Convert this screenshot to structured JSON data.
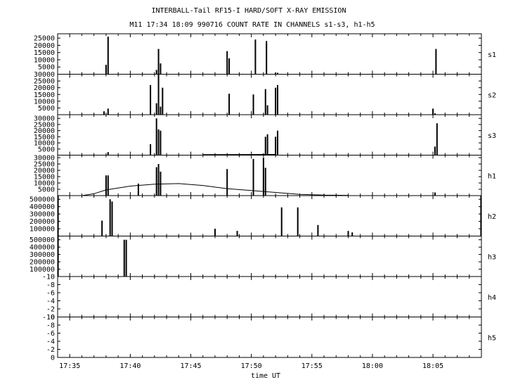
{
  "title_line1": "INTERBALL-Tail RF15-I HARD/SOFT X-RAY EMISSION",
  "title_line2": "M11  17:34 18:09 990716  COUNT RATE IN CHANNELS s1-s3, h1-h5",
  "xlabel": "time UT",
  "x_ticks": [
    "17:35",
    "17:40",
    "17:45",
    "17:50",
    "17:55",
    "18:00",
    "18:05"
  ],
  "chart_data": {
    "type": "bar",
    "title": "INTERBALL-Tail RF15-I HARD/SOFT X-RAY EMISSION",
    "subtitle": "M11  17:34 18:09 990716  COUNT RATE IN CHANNELS s1-s3, h1-h5",
    "xlabel": "time UT",
    "xlim": [
      "17:34",
      "18:09"
    ],
    "grid": false,
    "series": [
      {
        "name": "s1",
        "ylim": [
          0,
          28000
        ],
        "y_ticks": [
          5000,
          10000,
          15000,
          20000,
          25000
        ],
        "x": [
          "17:38:00",
          "17:38:10",
          "17:42:10",
          "17:42:20",
          "17:42:30",
          "17:48:00",
          "17:48:10",
          "17:50:20",
          "17:51:15",
          "17:52:00",
          "17:52:10",
          "18:05:15"
        ],
        "values": [
          6500,
          26000,
          3000,
          17500,
          7500,
          16000,
          11000,
          24000,
          23000,
          1000,
          1000,
          17500
        ]
      },
      {
        "name": "s2",
        "ylim": [
          0,
          30000
        ],
        "y_ticks": [
          5000,
          10000,
          15000,
          20000,
          25000,
          30000
        ],
        "x": [
          "17:37:50",
          "17:38:10",
          "17:41:40",
          "17:42:10",
          "17:42:20",
          "17:42:30",
          "17:42:40",
          "17:48:10",
          "17:50:10",
          "17:51:10",
          "17:51:20",
          "17:52:00",
          "17:52:10",
          "18:05:00",
          "18:05:10"
        ],
        "values": [
          2500,
          4500,
          22000,
          8500,
          30000,
          6000,
          20000,
          15500,
          15000,
          19000,
          7000,
          20000,
          22000,
          4500,
          1000
        ],
        "baseline": []
      },
      {
        "name": "s3",
        "ylim": [
          0,
          33000
        ],
        "y_ticks": [
          5000,
          10000,
          15000,
          20000,
          25000,
          30000
        ],
        "x": [
          "17:38:10",
          "17:41:40",
          "17:42:10",
          "17:42:20",
          "17:42:30",
          "17:51:10",
          "17:51:20",
          "17:52:00",
          "17:52:10",
          "18:05:10",
          "18:05:20"
        ],
        "values": [
          2500,
          9000,
          30000,
          21000,
          20000,
          15000,
          17000,
          15000,
          20000,
          7000,
          26000
        ],
        "baseline": [
          [
            "17:46:00",
            400
          ],
          [
            "17:49:00",
            500
          ],
          [
            "17:52:00",
            600
          ]
        ]
      },
      {
        "name": "h1",
        "ylim": [
          0,
          32000
        ],
        "y_ticks": [
          5000,
          10000,
          15000,
          20000,
          25000,
          30000
        ],
        "x": [
          "17:38:00",
          "17:38:10",
          "17:40:40",
          "17:42:10",
          "17:42:20",
          "17:42:30",
          "17:48:00",
          "17:50:10",
          "17:51:00",
          "17:51:10",
          "18:05:10"
        ],
        "values": [
          16000,
          16000,
          9500,
          22500,
          25000,
          19000,
          21000,
          29000,
          30000,
          22000,
          2500
        ],
        "baseline": [
          [
            "17:36:00",
            0
          ],
          [
            "17:37:00",
            1500
          ],
          [
            "17:38:00",
            4500
          ],
          [
            "17:40:00",
            7500
          ],
          [
            "17:42:00",
            9000
          ],
          [
            "17:44:00",
            9500
          ],
          [
            "17:46:00",
            8000
          ],
          [
            "17:48:00",
            5500
          ],
          [
            "17:50:00",
            4000
          ],
          [
            "17:52:00",
            2500
          ],
          [
            "17:54:00",
            1000
          ],
          [
            "17:56:00",
            400
          ],
          [
            "17:58:00",
            200
          ]
        ]
      },
      {
        "name": "h2",
        "ylim": [
          0,
          550000
        ],
        "y_ticks": [
          100000,
          200000,
          300000,
          400000,
          500000
        ],
        "x": [
          "17:34:02",
          "17:37:40",
          "17:38:20",
          "17:38:30",
          "17:47:00",
          "17:48:50",
          "17:52:30",
          "17:53:50",
          "17:55:30",
          "17:58:00",
          "17:58:20",
          "18:08:58"
        ],
        "values": [
          550000,
          210000,
          500000,
          470000,
          100000,
          70000,
          390000,
          390000,
          150000,
          70000,
          50000,
          550000
        ]
      },
      {
        "name": "h3",
        "ylim": [
          0,
          550000
        ],
        "y_ticks": [
          100000,
          200000,
          300000,
          400000,
          500000
        ],
        "x": [
          "17:34:02",
          "17:39:30",
          "17:39:40"
        ],
        "values": [
          550000,
          500000,
          500000
        ]
      },
      {
        "name": "h4",
        "ylim": [
          0,
          10
        ],
        "y_ticks": [
          0,
          2,
          4,
          6,
          8,
          10
        ],
        "tick_labels": [
          "0",
          "-2",
          "-4",
          "-6",
          "-8",
          "-10"
        ],
        "x": [],
        "values": []
      },
      {
        "name": "h5",
        "ylim": [
          0,
          10
        ],
        "y_ticks": [
          0,
          2,
          4,
          6,
          8,
          10
        ],
        "tick_labels": [
          "0",
          "-2",
          "-4",
          "-6",
          "-8",
          "-10"
        ],
        "x": [],
        "values": []
      }
    ]
  }
}
